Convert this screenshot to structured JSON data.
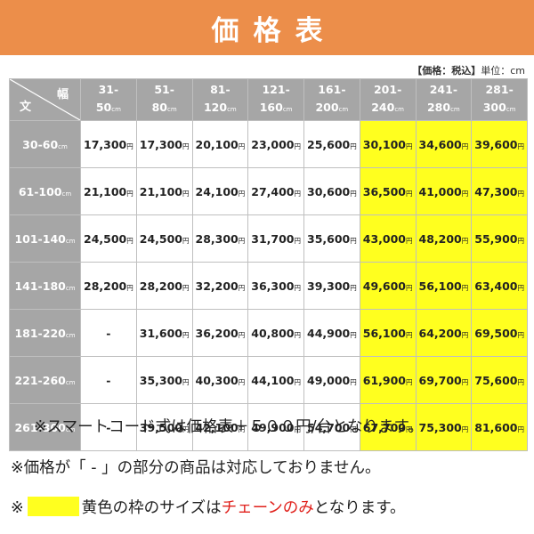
{
  "banner": {
    "title": "価格表"
  },
  "tax_note": {
    "bold": "【価格：税込】",
    "unit": "単位：cm"
  },
  "table": {
    "corner_height_label": "文",
    "corner_width_label": "幅",
    "width_columns": [
      {
        "top": "31-",
        "bottom": "50",
        "unit": "cm"
      },
      {
        "top": "51-",
        "bottom": "80",
        "unit": "cm"
      },
      {
        "top": "81-",
        "bottom": "120",
        "unit": "cm"
      },
      {
        "top": "121-",
        "bottom": "160",
        "unit": "cm"
      },
      {
        "top": "161-",
        "bottom": "200",
        "unit": "cm"
      },
      {
        "top": "201-",
        "bottom": "240",
        "unit": "cm"
      },
      {
        "top": "241-",
        "bottom": "280",
        "unit": "cm"
      },
      {
        "top": "281-",
        "bottom": "300",
        "unit": "cm"
      }
    ],
    "yen_unit": "円",
    "rows": [
      {
        "label": "30-60",
        "unit": "cm",
        "prices": [
          "17,300",
          "17,300",
          "20,100",
          "23,000",
          "25,600",
          "30,100",
          "34,600",
          "39,600"
        ]
      },
      {
        "label": "61-100",
        "unit": "cm",
        "prices": [
          "21,100",
          "21,100",
          "24,100",
          "27,400",
          "30,600",
          "36,500",
          "41,000",
          "47,300"
        ]
      },
      {
        "label": "101-140",
        "unit": "cm",
        "prices": [
          "24,500",
          "24,500",
          "28,300",
          "31,700",
          "35,600",
          "43,000",
          "48,200",
          "55,900"
        ]
      },
      {
        "label": "141-180",
        "unit": "cm",
        "prices": [
          "28,200",
          "28,200",
          "32,200",
          "36,300",
          "39,300",
          "49,600",
          "56,100",
          "63,400"
        ]
      },
      {
        "label": "181-220",
        "unit": "cm",
        "prices": [
          "-",
          "31,600",
          "36,200",
          "40,800",
          "44,900",
          "56,100",
          "64,200",
          "69,500"
        ]
      },
      {
        "label": "221-260",
        "unit": "cm",
        "prices": [
          "-",
          "35,300",
          "40,300",
          "44,100",
          "49,000",
          "61,900",
          "69,700",
          "75,600"
        ]
      },
      {
        "label": "261-300",
        "unit": "cm",
        "prices": [
          "-",
          "39,500",
          "42,100",
          "49,900",
          "54,700",
          "67,700",
          "75,300",
          "81,600"
        ]
      }
    ],
    "highlight_from_column": 5,
    "highlight_color": "#ffff1f",
    "header_color": "#a6a6a6"
  },
  "notes": {
    "line1": "※スマートコード式は価格表＋５００円/台となります。",
    "line2": "※価格が「 - 」の部分の商品は対応しておりません。",
    "line3_prefix": "※",
    "line3_middle": "黄色の枠のサイズは",
    "line3_red": "チェーンのみ",
    "line3_suffix": "となります。"
  },
  "colors": {
    "banner": "#ec8e4a",
    "accent_red": "#e0201b"
  }
}
